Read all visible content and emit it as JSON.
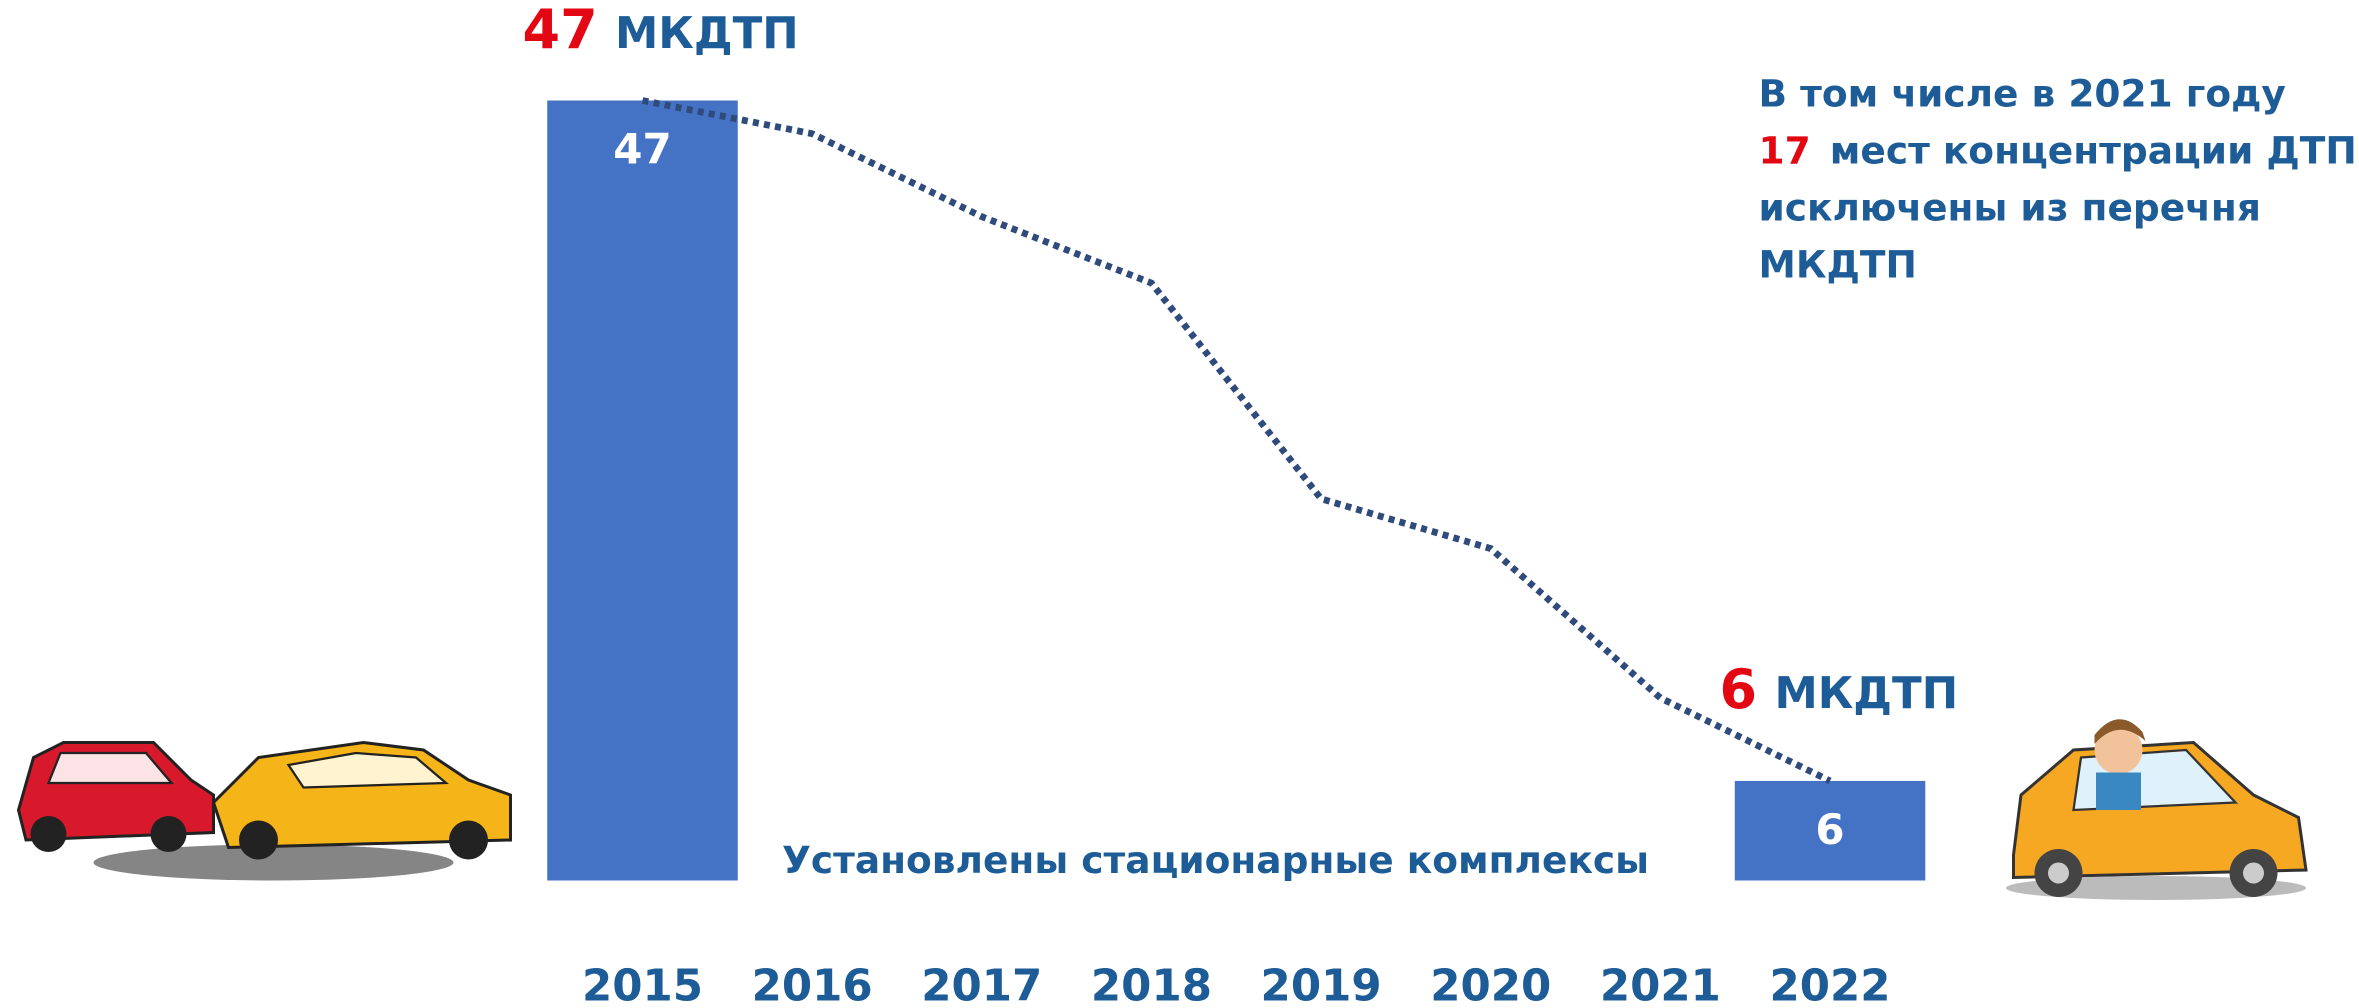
{
  "chart_data": {
    "type": "bar",
    "categories": [
      "2015",
      "2016",
      "2017",
      "2018",
      "2019",
      "2020",
      "2021",
      "2022"
    ],
    "values": [
      47,
      null,
      null,
      null,
      null,
      null,
      null,
      6
    ],
    "color": "#4472c4",
    "ylim": [
      0,
      47
    ],
    "trend": {
      "values": [
        47,
        45,
        40,
        36,
        23,
        20,
        11,
        6
      ],
      "color": "#2f4b7c"
    },
    "annotations": [
      {
        "number": "47",
        "unit": "МКДТП"
      },
      {
        "number": "6",
        "unit": "МКДТП"
      }
    ],
    "note": {
      "line1": "В том числе в 2021 году",
      "number": "17",
      "line2": "мест концентрации ДТП",
      "line3": "исключены из перечня",
      "line4": "МКДТП"
    },
    "caption": "Установлены стационарные комплексы"
  }
}
